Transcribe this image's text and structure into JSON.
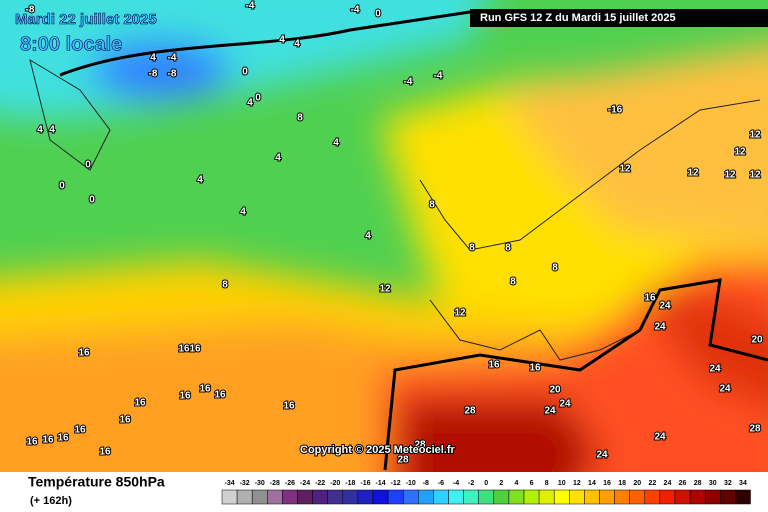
{
  "map": {
    "valid_time": "Mardi 22 juillet 2025",
    "local_time": "8:00 locale",
    "run": "Run GFS 12 Z du Mardi 15 juillet 2025",
    "copyright": "Copyright © 2025 Meteociel.fr",
    "contour_labels": [
      -8,
      -4,
      -4,
      0,
      -8,
      -4,
      -8,
      4,
      4,
      4,
      0,
      4,
      0,
      -4,
      -4,
      4,
      4,
      0,
      0,
      0,
      8,
      4,
      4,
      4,
      4,
      4,
      -16,
      12,
      12,
      12,
      12,
      12,
      12,
      8,
      8,
      8,
      8,
      8,
      12,
      8,
      12,
      16,
      24,
      24,
      16,
      16,
      16,
      16,
      16,
      16,
      16,
      16,
      16,
      16,
      16,
      16,
      16,
      16,
      16,
      16,
      20,
      24,
      24,
      28,
      24,
      24,
      20,
      24,
      28,
      24,
      28,
      28
    ]
  },
  "legend": {
    "title": "Température 850hPa",
    "lead": "(+ 162h)",
    "scale": {
      "values": [
        -34,
        -32,
        -30,
        -28,
        -26,
        -24,
        -22,
        -20,
        -18,
        -16,
        -14,
        -12,
        -10,
        -8,
        -6,
        -4,
        -2,
        0,
        2,
        4,
        6,
        8,
        10,
        12,
        14,
        16,
        18,
        20,
        22,
        24,
        26,
        28,
        30,
        32,
        34
      ],
      "colors": [
        "#d0d0d0",
        "#b0b0b0",
        "#909090",
        "#a070a0",
        "#803080",
        "#602060",
        "#502080",
        "#403090",
        "#3030a0",
        "#2020c0",
        "#1010e0",
        "#2040ff",
        "#3070ff",
        "#20a0ff",
        "#30d0ff",
        "#40f0f0",
        "#40f0c0",
        "#40e080",
        "#50d040",
        "#80e020",
        "#b0f000",
        "#e0f000",
        "#ffff00",
        "#ffe000",
        "#ffc000",
        "#ffa000",
        "#ff8000",
        "#ff6000",
        "#ff4000",
        "#f02000",
        "#d01000",
        "#b00000",
        "#900000",
        "#600000",
        "#300000"
      ]
    }
  }
}
